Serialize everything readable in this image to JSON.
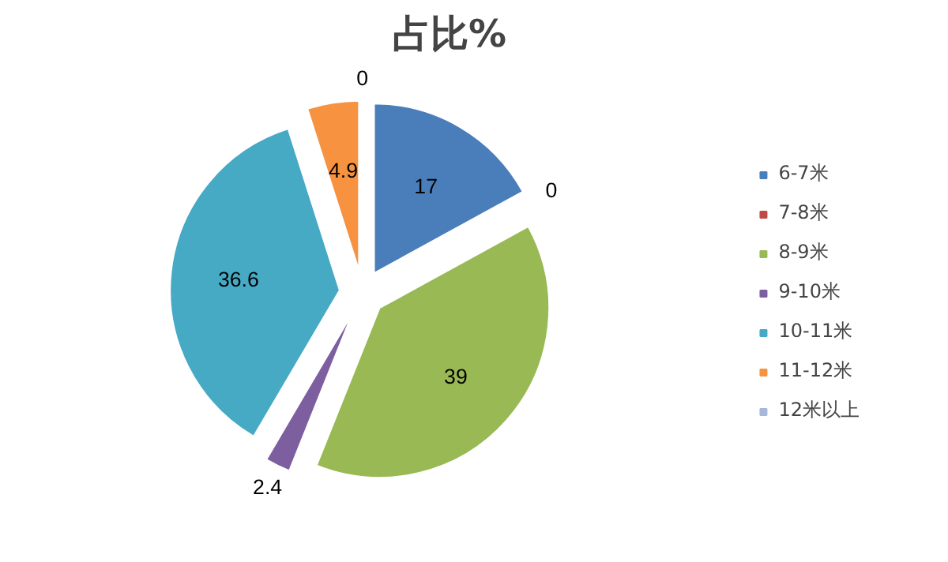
{
  "chart_data": {
    "type": "pie",
    "title": "占比%",
    "categories": [
      "6-7米",
      "7-8米",
      "8-9米",
      "9-10米",
      "10-11米",
      "11-12米",
      "12米以上"
    ],
    "values": [
      17,
      0,
      39,
      2.4,
      36.6,
      4.9,
      0
    ],
    "colors": [
      "#4a7ebb",
      "#be4b48",
      "#98b954",
      "#7d5fa0",
      "#46aac5",
      "#f69240",
      "#a5b8da"
    ],
    "value_labels": [
      "17",
      "0",
      "39",
      "2.4",
      "36.6",
      "4.9",
      "0"
    ],
    "legend": "right"
  }
}
